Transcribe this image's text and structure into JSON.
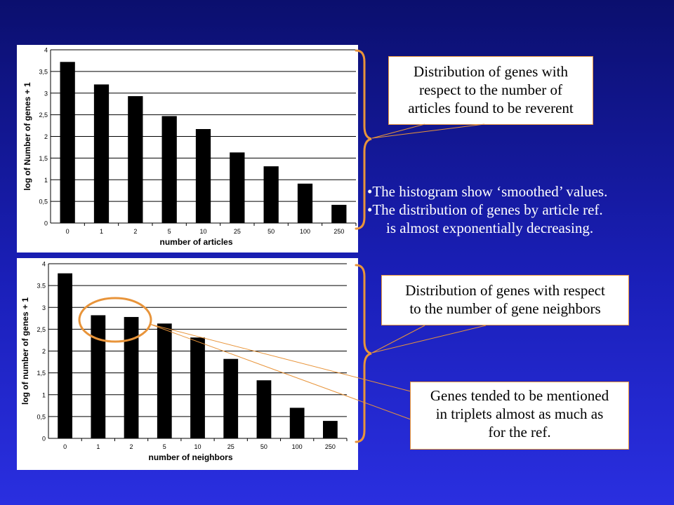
{
  "chart_data": [
    {
      "type": "bar",
      "categories": [
        "0",
        "1",
        "2",
        "5",
        "10",
        "25",
        "50",
        "100",
        "250"
      ],
      "values": [
        3.72,
        3.2,
        2.93,
        2.47,
        2.17,
        1.63,
        1.31,
        0.91,
        0.42
      ],
      "xlabel": "number of articles",
      "ylabel": "log of Number of genes + 1",
      "ylim": [
        0,
        4
      ],
      "yticks": [
        "0",
        "0,5",
        "1",
        "1,5",
        "2",
        "2,5",
        "3",
        "3,5",
        "4"
      ],
      "grid": true,
      "bar_color": "#000000"
    },
    {
      "type": "bar",
      "categories": [
        "0",
        "1",
        "2",
        "5",
        "10",
        "25",
        "50",
        "100",
        "250"
      ],
      "values": [
        3.78,
        2.82,
        2.78,
        2.63,
        2.31,
        1.82,
        1.33,
        0.7,
        0.4
      ],
      "xlabel": "number of neighbors",
      "ylabel": "log of number of genes + 1",
      "ylim": [
        0,
        4
      ],
      "yticks": [
        "0",
        "0,5",
        "1",
        "1,5",
        "2",
        "2,5",
        "3",
        "3.5",
        "4"
      ],
      "grid": true,
      "bar_color": "#000000"
    }
  ],
  "callouts": {
    "top": [
      "Distribution of genes with",
      "respect to the number of",
      "articles found to be reverent"
    ],
    "middle": [
      "Distribution of genes with respect",
      "to the number of gene neighbors"
    ],
    "bottom": [
      "Genes tended to be mentioned",
      "in triplets almost as much as",
      "for the ref."
    ]
  },
  "bullets": {
    "b1": "•The histogram show ‘smoothed’ values.",
    "b2": "•The distribution of genes by article ref.",
    "b2_cont": "is almost exponentially decreasing."
  },
  "colors": {
    "accent": "#e8943a",
    "background_top": "#0b0f6e",
    "background_bottom": "#2a2fe0",
    "bullet_text": "#ffffff"
  }
}
